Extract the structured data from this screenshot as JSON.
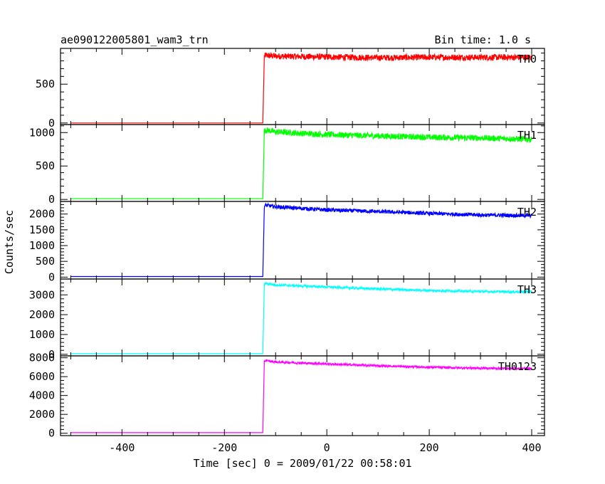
{
  "header": {
    "title": "ae090122005801_wam3_trn",
    "bin_time": "Bin time: 1.0 s"
  },
  "axes": {
    "xlabel": "Time [sec] 0 = 2009/01/22 00:58:01",
    "ylabel": "Counts/sec"
  },
  "chart_data": {
    "type": "line",
    "title": "ae090122005801_wam3_trn",
    "subtitle": "Bin time: 1.0 s",
    "xlabel": "Time [sec] 0 = 2009/01/22 00:58:01",
    "ylabel": "Counts/sec",
    "xlim": [
      -520,
      425
    ],
    "x_ticks": [
      -400,
      -200,
      0,
      200,
      400
    ],
    "grid": false,
    "legend": "none",
    "panels": [
      {
        "name": "TH0",
        "color": "#ff0000",
        "ylim": [
          -20,
          960
        ],
        "y_ticks": [
          0,
          500
        ],
        "noise": 40,
        "x": [
          -500,
          -125,
          -122,
          -119,
          -100,
          0,
          100,
          200,
          300,
          400
        ],
        "y": [
          0,
          0,
          860,
          870,
          860,
          850,
          840,
          845,
          845,
          845
        ]
      },
      {
        "name": "TH1",
        "color": "#00ff00",
        "ylim": [
          -30,
          1120
        ],
        "y_ticks": [
          0,
          500,
          1000
        ],
        "noise": 45,
        "x": [
          -500,
          -125,
          -122,
          -119,
          -100,
          0,
          100,
          200,
          300,
          400
        ],
        "y": [
          10,
          10,
          1020,
          1040,
          1010,
          970,
          950,
          930,
          920,
          900
        ]
      },
      {
        "name": "TH2",
        "color": "#0000ff",
        "ylim": [
          -60,
          2400
        ],
        "y_ticks": [
          0,
          500,
          1000,
          1500,
          2000
        ],
        "noise": 60,
        "x": [
          -500,
          -125,
          -122,
          -119,
          -100,
          0,
          100,
          200,
          300,
          400
        ],
        "y": [
          20,
          20,
          2250,
          2280,
          2230,
          2130,
          2080,
          2020,
          1970,
          1950
        ]
      },
      {
        "name": "TH3",
        "color": "#00ffff",
        "ylim": [
          -80,
          3800
        ],
        "y_ticks": [
          0,
          1000,
          2000,
          3000
        ],
        "noise": 60,
        "x": [
          -500,
          -125,
          -122,
          -119,
          -100,
          0,
          100,
          200,
          300,
          400
        ],
        "y": [
          30,
          30,
          3550,
          3580,
          3500,
          3400,
          3300,
          3220,
          3170,
          3150
        ]
      },
      {
        "name": "TH0123",
        "color": "#ff00ff",
        "ylim": [
          -250,
          8200
        ],
        "y_ticks": [
          0,
          2000,
          4000,
          6000,
          8000
        ],
        "noise": 110,
        "x": [
          -500,
          -125,
          -122,
          -119,
          -100,
          0,
          100,
          200,
          300,
          400
        ],
        "y": [
          60,
          60,
          7650,
          7700,
          7550,
          7350,
          7150,
          7000,
          6900,
          6850
        ]
      }
    ]
  }
}
